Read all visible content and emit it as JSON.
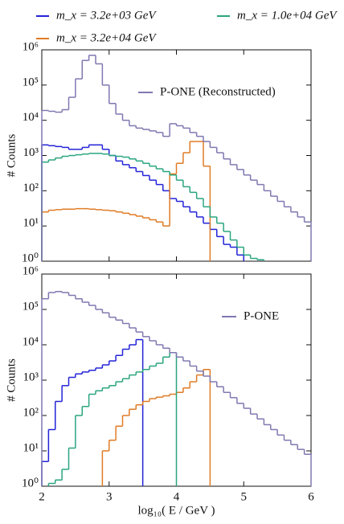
{
  "chart_data": [
    {
      "type": "step-histogram",
      "ylabel": "# Counts",
      "log_y": true,
      "xlim": [
        2,
        6
      ],
      "xticks": [
        2,
        3,
        4,
        5,
        6
      ],
      "ylim": [
        1,
        1000000
      ],
      "yticks": [
        {
          "value": 1,
          "label": "10⁰"
        },
        {
          "value": 10,
          "label": "10¹"
        },
        {
          "value": 100,
          "label": "10²"
        },
        {
          "value": 1000,
          "label": "10³"
        },
        {
          "value": 10000,
          "label": "10⁴"
        },
        {
          "value": 100000,
          "label": "10⁵"
        },
        {
          "value": 1000000,
          "label": "10⁶"
        }
      ],
      "bins": [
        2.0,
        2.1,
        2.2,
        2.3,
        2.4,
        2.5,
        2.6,
        2.7,
        2.8,
        2.9,
        3.0,
        3.1,
        3.2,
        3.3,
        3.4,
        3.5,
        3.6,
        3.7,
        3.8,
        3.9,
        4.0,
        4.1,
        4.2,
        4.3,
        4.4,
        4.5,
        4.6,
        4.7,
        4.8,
        4.9,
        5.0,
        5.1,
        5.2,
        5.3,
        5.4,
        5.5,
        5.6,
        5.7,
        5.8,
        5.9,
        6.0
      ],
      "series": [
        {
          "name": "m_x = 3.2e+03 GeV",
          "color": "#2323d8",
          "values": [
            2000,
            1900,
            1800,
            1700,
            1500,
            1500,
            1700,
            2000,
            2000,
            1500,
            1000,
            700,
            550,
            450,
            350,
            270,
            200,
            150,
            100,
            60,
            50,
            35,
            25,
            18,
            12,
            8,
            5,
            3,
            2.5,
            1.5,
            null,
            null,
            null,
            null,
            null,
            null,
            null,
            null,
            null,
            null
          ]
        },
        {
          "name": "m_x = 3.2e+04 GeV",
          "color": "#e07b25",
          "values": [
            25,
            28,
            29,
            30,
            30,
            31,
            31,
            30,
            29,
            28,
            27,
            25,
            23,
            21,
            19,
            17,
            15,
            13,
            10,
            300,
            600,
            1200,
            2500,
            2500,
            500,
            null,
            null,
            null,
            null,
            null,
            null,
            null,
            null,
            null,
            null,
            null,
            null,
            null,
            null,
            null
          ]
        },
        {
          "name": "m_x = 1.0e+04 GeV",
          "color": "#2aa57f",
          "values": [
            650,
            750,
            850,
            950,
            1000,
            1050,
            1100,
            1150,
            1150,
            1100,
            1000,
            950,
            900,
            800,
            700,
            600,
            500,
            420,
            350,
            280,
            200,
            130,
            90,
            60,
            35,
            18,
            12,
            7,
            4,
            2.5,
            1.5,
            1.2,
            1.1,
            null,
            null,
            null,
            null,
            null,
            null,
            null
          ]
        },
        {
          "name": "P-ONE (Reconstructed)",
          "color": "#7f78b0",
          "values": [
            19000,
            18000,
            17000,
            20000,
            45000,
            150000,
            500000,
            700000,
            400000,
            100000,
            30000,
            15000,
            10000,
            7000,
            6000,
            5500,
            5000,
            4500,
            3500,
            8000,
            7000,
            6000,
            4500,
            3500,
            2500,
            1700,
            1200,
            800,
            550,
            400,
            280,
            200,
            150,
            100,
            70,
            50,
            35,
            25,
            18,
            13
          ]
        }
      ]
    },
    {
      "type": "step-histogram",
      "ylabel": "# Counts",
      "xlabel": "log₁₀( E / GeV )",
      "log_y": true,
      "xlim": [
        2,
        6
      ],
      "xticks": [
        2,
        3,
        4,
        5,
        6
      ],
      "ylim": [
        1,
        1000000
      ],
      "yticks": [
        {
          "value": 1,
          "label": "10⁰"
        },
        {
          "value": 10,
          "label": "10¹"
        },
        {
          "value": 100,
          "label": "10²"
        },
        {
          "value": 1000,
          "label": "10³"
        },
        {
          "value": 10000,
          "label": "10⁴"
        },
        {
          "value": 100000,
          "label": "10⁵"
        },
        {
          "value": 1000000,
          "label": "10⁶"
        }
      ],
      "bins": [
        2.0,
        2.1,
        2.2,
        2.3,
        2.4,
        2.5,
        2.6,
        2.7,
        2.8,
        2.9,
        3.0,
        3.1,
        3.2,
        3.3,
        3.4,
        3.5,
        3.6,
        3.7,
        3.8,
        3.9,
        4.0,
        4.1,
        4.2,
        4.3,
        4.4,
        4.5,
        4.6,
        4.7,
        4.8,
        4.9,
        5.0,
        5.1,
        5.2,
        5.3,
        5.4,
        5.5,
        5.6,
        5.7,
        5.8,
        5.9,
        6.0
      ],
      "series": [
        {
          "color": "#2323d8",
          "values": [
            5,
            40,
            250,
            700,
            1200,
            1500,
            1700,
            1900,
            2200,
            2700,
            3500,
            5000,
            7500,
            10000,
            14000,
            null,
            null,
            null,
            null,
            null,
            null,
            null,
            null,
            null,
            null,
            null,
            null,
            null,
            null,
            null,
            null,
            null,
            null,
            null,
            null,
            null,
            null,
            null,
            null,
            null
          ]
        },
        {
          "color": "#e07b25",
          "values": [
            null,
            null,
            null,
            null,
            null,
            null,
            null,
            null,
            null,
            10,
            20,
            50,
            100,
            150,
            200,
            250,
            300,
            330,
            360,
            400,
            450,
            600,
            900,
            1400,
            2000,
            null,
            null,
            null,
            null,
            null,
            null,
            null,
            null,
            null,
            null,
            null,
            null,
            null,
            null,
            null
          ]
        },
        {
          "color": "#2aa57f",
          "values": [
            null,
            1.2,
            1.5,
            3,
            12,
            100,
            180,
            400,
            500,
            600,
            700,
            900,
            1100,
            1400,
            1700,
            2000,
            2500,
            3000,
            4500,
            6000,
            null,
            null,
            null,
            null,
            null,
            null,
            null,
            null,
            null,
            null,
            null,
            null,
            null,
            null,
            null,
            null,
            null,
            null,
            null,
            null
          ]
        },
        {
          "name": "P-ONE",
          "color": "#7f78b0",
          "values": [
            200000,
            300000,
            320000,
            300000,
            250000,
            200000,
            160000,
            130000,
            100000,
            80000,
            60000,
            50000,
            40000,
            30000,
            23000,
            17000,
            13000,
            10000,
            8000,
            6000,
            4500,
            3500,
            2500,
            1800,
            1300,
            900,
            650,
            450,
            320,
            220,
            160,
            110,
            80,
            55,
            40,
            28,
            20,
            15,
            11,
            8
          ]
        }
      ]
    }
  ]
}
